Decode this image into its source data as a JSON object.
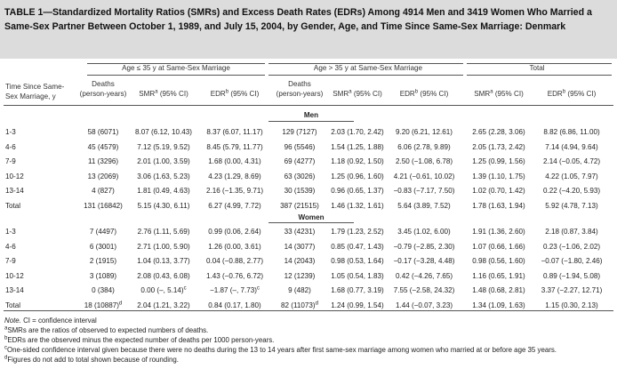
{
  "title": "TABLE 1—Standardized Mortality Ratios (SMRs) and Excess Death Rates (EDRs) Among 4914 Men and 3419 Women Who Married a Same-Sex Partner Between October 1, 1989, and July 15, 2004, by Gender, Age, and Time Since Same-Sex Marriage: Denmark",
  "group_headers": {
    "age_le35": "Age ≤ 35 y at Same-Sex Marriage",
    "age_gt35": "Age > 35 y at Same-Sex Marriage",
    "total": "Total"
  },
  "col_headers": {
    "time_line1": "Time Since Same-",
    "time_line2": "Sex Marriage, y",
    "deaths_line1": "Deaths",
    "deaths_line2": "(person-years)",
    "smr": "SMR",
    "smr_sup": "a",
    "smr_ci": " (95% CI)",
    "edr": "EDR",
    "edr_sup": "b",
    "edr_ci": " (95% CI)"
  },
  "sections": {
    "men": "Men",
    "women": "Women"
  },
  "men_rows": [
    {
      "time": "1-3",
      "d1": "58 (6071)",
      "smr1": "8.07 (6.12, 10.43)",
      "edr1": "8.37 (6.07, 11.17)",
      "d2": "129 (7127)",
      "smr2": "2.03 (1.70, 2.42)",
      "edr2": "9.20 (6.21, 12.61)",
      "smrt": "2.65 (2.28, 3.06)",
      "edrt": "8.82 (6.86, 11.00)"
    },
    {
      "time": "4-6",
      "d1": "45 (4579)",
      "smr1": "7.12 (5.19, 9.52)",
      "edr1": "8.45 (5.79, 11.77)",
      "d2": "96 (5546)",
      "smr2": "1.54 (1.25, 1.88)",
      "edr2": "6.06 (2.78, 9.89)",
      "smrt": "2.05 (1.73, 2.42)",
      "edrt": "7.14 (4.94, 9.64)"
    },
    {
      "time": "7-9",
      "d1": "11 (3296)",
      "smr1": "2.01 (1.00, 3.59)",
      "edr1": "1.68 (0.00, 4.31)",
      "d2": "69 (4277)",
      "smr2": "1.18 (0.92, 1.50)",
      "edr2": "2.50 (−1.08, 6.78)",
      "smrt": "1.25 (0.99, 1.56)",
      "edrt": "2.14 (−0.05, 4.72)"
    },
    {
      "time": "10-12",
      "d1": "13 (2069)",
      "smr1": "3.06 (1.63, 5.23)",
      "edr1": "4.23 (1.29, 8.69)",
      "d2": "63 (3026)",
      "smr2": "1.25 (0.96, 1.60)",
      "edr2": "4.21 (−0.61, 10.02)",
      "smrt": "1.39 (1.10, 1.75)",
      "edrt": "4.22 (1.05, 7.97)"
    },
    {
      "time": "13-14",
      "d1": "4 (827)",
      "smr1": "1.81 (0.49, 4.63)",
      "edr1": "2.16 (−1.35, 9.71)",
      "d2": "30 (1539)",
      "smr2": "0.96 (0.65, 1.37)",
      "edr2": "−0.83 (−7.17, 7.50)",
      "smrt": "1.02 (0.70, 1.42)",
      "edrt": "0.22 (−4.20, 5.93)"
    },
    {
      "time": "Total",
      "d1": "131 (16842)",
      "smr1": "5.15 (4.30, 6.11)",
      "edr1": "6.27 (4.99, 7.72)",
      "d2": "387 (21515)",
      "smr2": "1.46 (1.32, 1.61)",
      "edr2": "5.64 (3.89, 7.52)",
      "smrt": "1.78 (1.63, 1.94)",
      "edrt": "5.92 (4.78, 7.13)"
    }
  ],
  "women_rows": [
    {
      "time": "1-3",
      "d1": "7 (4497)",
      "smr1": "2.76 (1.11, 5.69)",
      "edr1": "0.99 (0.06, 2.64)",
      "d2": "33 (4231)",
      "smr2": "1.79 (1.23, 2.52)",
      "edr2": "3.45 (1.02, 6.00)",
      "smrt": "1.91 (1.36, 2.60)",
      "edrt": "2.18 (0.87, 3.84)"
    },
    {
      "time": "4-6",
      "d1": "6 (3001)",
      "smr1": "2.71 (1.00, 5.90)",
      "edr1": "1.26 (0.00, 3.61)",
      "d2": "14 (3077)",
      "smr2": "0.85 (0.47, 1.43)",
      "edr2": "−0.79 (−2.85, 2.30)",
      "smrt": "1.07 (0.66, 1.66)",
      "edrt": "0.23 (−1.06, 2.02)"
    },
    {
      "time": "7-9",
      "d1": "2 (1915)",
      "smr1": "1.04 (0.13, 3.77)",
      "edr1": "0.04 (−0.88, 2.77)",
      "d2": "14 (2043)",
      "smr2": "0.98 (0.53, 1.64)",
      "edr2": "−0.17 (−3.28, 4.48)",
      "smrt": "0.98 (0.56, 1.60)",
      "edrt": "−0.07 (−1.80, 2.46)"
    },
    {
      "time": "10-12",
      "d1": "3 (1089)",
      "smr1": "2.08 (0.43, 6.08)",
      "edr1": "1.43 (−0.76, 6.72)",
      "d2": "12 (1239)",
      "smr2": "1.05 (0.54, 1.83)",
      "edr2": "0.42 (−4.26, 7.65)",
      "smrt": "1.16 (0.65, 1.91)",
      "edrt": "0.89 (−1.94, 5.08)"
    },
    {
      "time": "13-14",
      "d1": "0 (384)",
      "smr1": "0.00 (–, 5.14)",
      "smr1_sup": "c",
      "edr1": "−1.87 (–, 7.73)",
      "edr1_sup": "c",
      "d2": "9 (482)",
      "smr2": "1.68 (0.77, 3.19)",
      "edr2": "7.55 (−2.58, 24.32)",
      "smrt": "1.48 (0.68, 2.81)",
      "edrt": "3.37 (−2.27, 12.71)"
    },
    {
      "time": "Total",
      "d1": "18 (10887)",
      "d1_sup": "d",
      "smr1": "2.04 (1.21, 3.22)",
      "edr1": "0.84 (0.17, 1.80)",
      "d2": "82 (11073)",
      "d2_sup": "d",
      "smr2": "1.24 (0.99, 1.54)",
      "edr2": "1.44 (−0.07, 3.23)",
      "smrt": "1.34 (1.09, 1.63)",
      "edrt": "1.15 (0.30, 2.13)"
    }
  ],
  "notes": {
    "note_label": "Note.",
    "note_text": " CI = confidence interval",
    "a_sup": "a",
    "a_text": "SMRs are the ratios of observed to expected numbers of deaths.",
    "b_sup": "b",
    "b_text": "EDRs are the observed minus the expected number of deaths per 1000 person-years.",
    "c_sup": "c",
    "c_text": "One-sided confidence interval given because there were no deaths during the 13 to 14 years after first same-sex marriage among women who married at or before age 35 years.",
    "d_sup": "d",
    "d_text": "Figures do not add to total shown because of rounding."
  }
}
